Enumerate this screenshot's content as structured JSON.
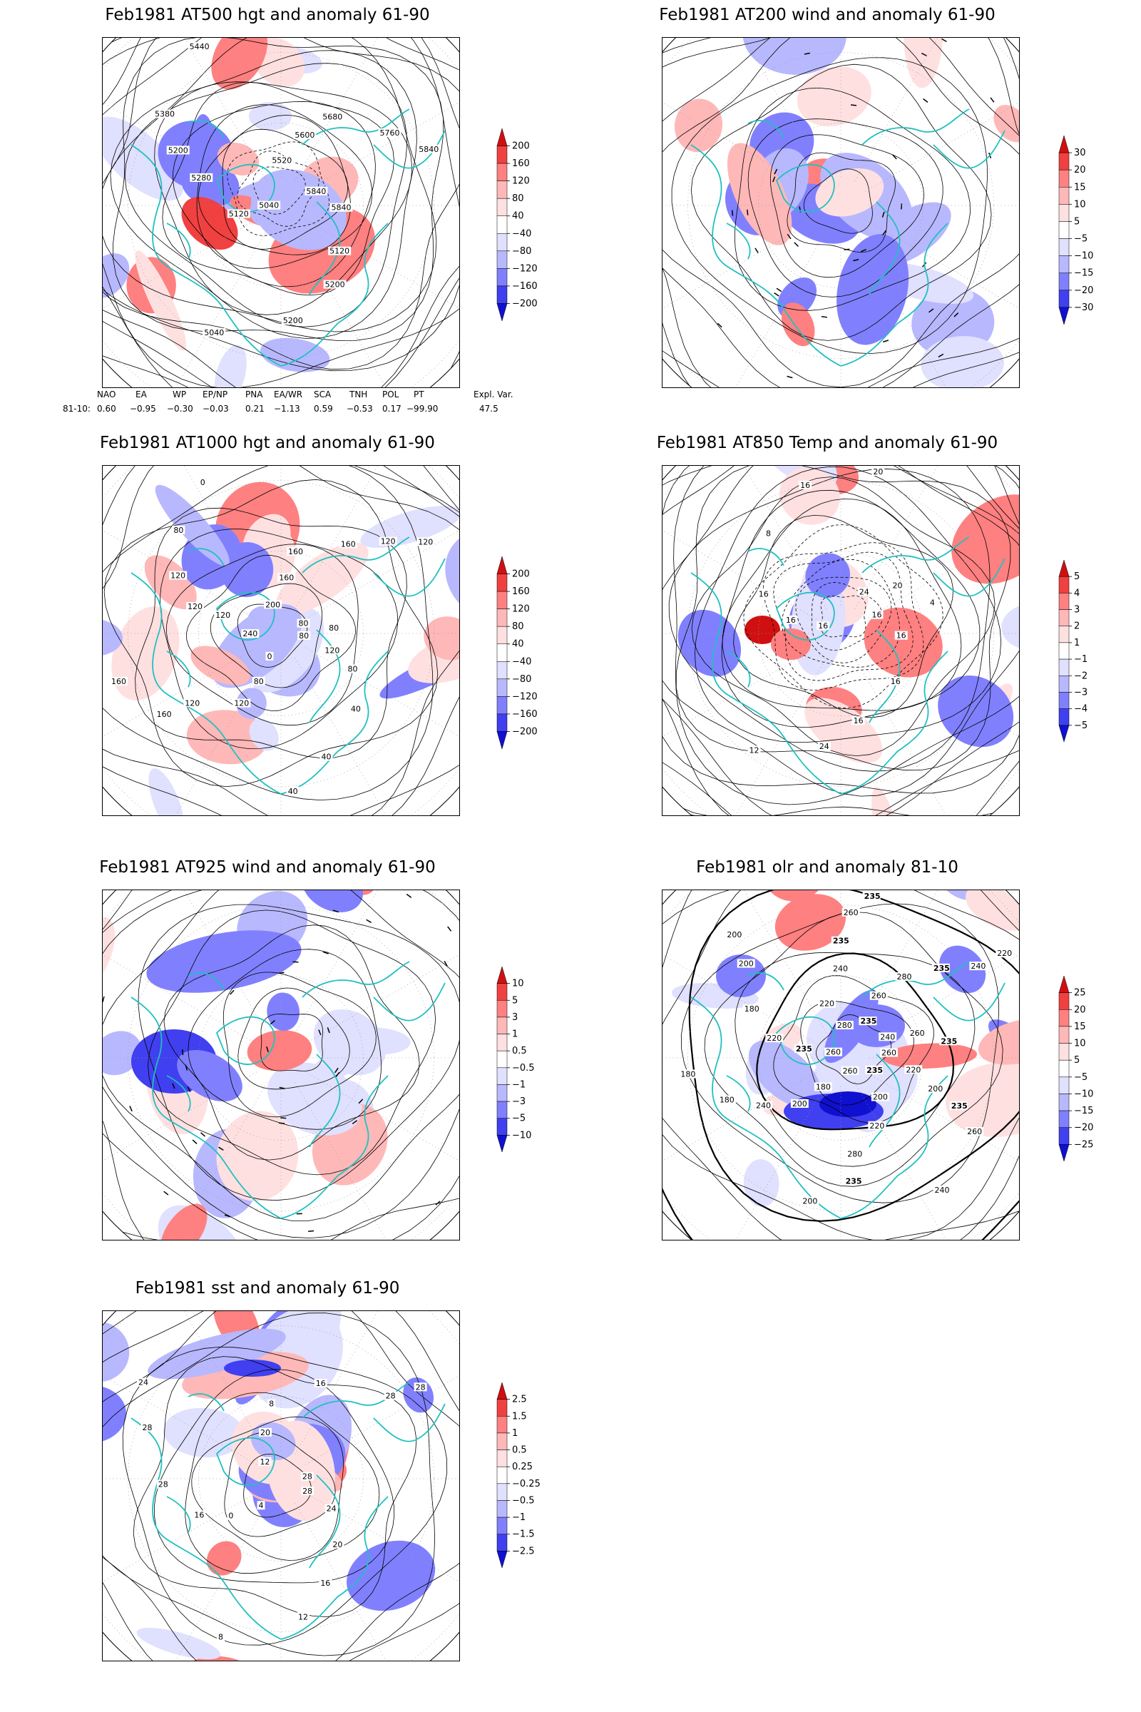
{
  "panels": [
    {
      "id": "p500",
      "title": "Feb1981 AT500 hgt and anomaly 61-90",
      "colorbar": [
        "200",
        "160",
        "120",
        "80",
        "40",
        "−40",
        "−80",
        "−120",
        "−160",
        "−200"
      ],
      "contour_labels": [
        "5840",
        "5840",
        "5120",
        "5200",
        "5200",
        "5040",
        "5040",
        "5120",
        "5280",
        "5200",
        "5380",
        "5440",
        "5520",
        "5600",
        "5680",
        "5760",
        "5840"
      ],
      "anomaly_pattern": "strong-positive-NW-Atlantic"
    },
    {
      "id": "p200",
      "title": "Feb1981 AT200 wind and anomaly 61-90",
      "colorbar": [
        "30",
        "20",
        "15",
        "10",
        "5",
        "−5",
        "−10",
        "−15",
        "−20",
        "−30"
      ],
      "contour_labels": [],
      "anomaly_pattern": "streamlines"
    },
    {
      "id": "p1000",
      "title": "Feb1981 AT1000 hgt and anomaly 61-90",
      "colorbar": [
        "200",
        "160",
        "120",
        "80",
        "40",
        "−40",
        "−80",
        "−120",
        "−160",
        "−200"
      ],
      "contour_labels": [
        "80",
        "120",
        "80",
        "40",
        "40",
        "40",
        "0",
        "80",
        "120",
        "120",
        "160",
        "160",
        "240",
        "120",
        "120",
        "120",
        "80",
        "0",
        "200",
        "160",
        "160",
        "160",
        "120",
        "120",
        "80",
        "80"
      ],
      "anomaly_pattern": "positive-atlantic"
    },
    {
      "id": "p850",
      "title": "Feb1981 AT850 Temp and anomaly 61-90",
      "colorbar": [
        "5",
        "4",
        "3",
        "2",
        "1",
        "−1",
        "−2",
        "−3",
        "−4",
        "−5"
      ],
      "contour_labels": [
        "16",
        "16",
        "16",
        "16",
        "24",
        "12",
        "16",
        "16",
        "16",
        "8",
        "16",
        "20",
        "24",
        "20",
        "4"
      ],
      "anomaly_pattern": "temperature"
    },
    {
      "id": "p925",
      "title": "Feb1981 AT925 wind and anomaly 61-90",
      "colorbar": [
        "10",
        "5",
        "3",
        "1",
        "0.5",
        "−0.5",
        "−1",
        "−3",
        "−5",
        "−10"
      ],
      "contour_labels": [],
      "anomaly_pattern": "streamlines"
    },
    {
      "id": "polr",
      "title": "Feb1981 olr and anomaly 81-10",
      "colorbar": [
        "25",
        "20",
        "15",
        "10",
        "5",
        "−5",
        "−10",
        "−15",
        "−20",
        "−25"
      ],
      "contour_labels": [
        "260",
        "220",
        "200",
        "235",
        "260",
        "240",
        "235",
        "200",
        "220",
        "280",
        "235",
        "200",
        "260",
        "180",
        "200",
        "240",
        "180",
        "180",
        "260",
        "235",
        "220",
        "180",
        "200",
        "200",
        "280",
        "220",
        "240",
        "235",
        "260",
        "235",
        "235",
        "260",
        "280",
        "235",
        "240",
        "220",
        "240",
        "260",
        "235"
      ],
      "anomaly_pattern": "olr"
    },
    {
      "id": "psst",
      "title": "Feb1981 sst and anomaly 61-90",
      "colorbar": [
        "2.5",
        "1.5",
        "1",
        "0.5",
        "0.25",
        "−0.25",
        "−0.5",
        "−1",
        "−1.5",
        "−2.5"
      ],
      "contour_labels": [
        "28",
        "24",
        "20",
        "16",
        "12",
        "8",
        "4",
        "0",
        "16",
        "28",
        "28",
        "24",
        "12",
        "20",
        "8",
        "16",
        "28",
        "28",
        "28"
      ],
      "anomaly_pattern": "sst"
    }
  ],
  "teleconnection": {
    "headers": [
      "NAO",
      "EA",
      "WP",
      "EP/NP",
      "PNA",
      "EA/WR",
      "SCA",
      "TNH",
      "POL",
      "PT",
      "Expl. Var."
    ],
    "row_label": "81-10:",
    "values": [
      "0.60",
      "−0.95",
      "−0.30",
      "−0.03",
      "0.21",
      "−1.13",
      "0.59",
      "−0.53",
      "0.17",
      "−99.90",
      "47.5"
    ]
  },
  "colors": {
    "coastline": "#20c0c0",
    "positive": [
      "#ffe0e0",
      "#ffb8b8",
      "#ff8080",
      "#f04040",
      "#d01010"
    ],
    "negative": [
      "#e0e0ff",
      "#b8b8ff",
      "#8080ff",
      "#4040f0",
      "#1010d0"
    ],
    "contour": "#000000",
    "grid": "#999999"
  }
}
